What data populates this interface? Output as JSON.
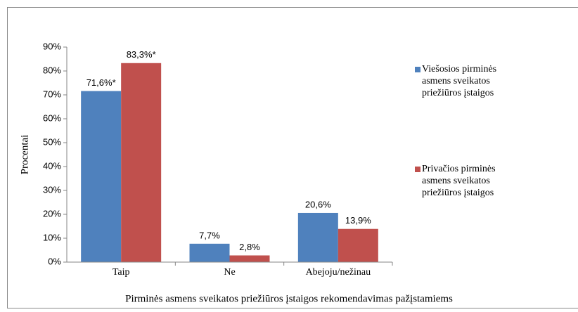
{
  "chart_data": {
    "type": "bar",
    "x_label": "Pirminės asmens sveikatos priežiūros įstaigos rekomendavimas pažįstamiems",
    "y_label": "Procentai",
    "categories": [
      "Taip",
      "Ne",
      "Abejoju/nežinau"
    ],
    "series": [
      {
        "name": "Viešosios pirminės asmens sveikatos priežiūros įstaigos",
        "color": "#4f81bd",
        "values": [
          71.6,
          7.7,
          20.6
        ],
        "value_labels": [
          "71,6%*",
          "7,7%",
          "20,6%"
        ]
      },
      {
        "name": "Privačios pirminės asmens sveikatos priežiūros įstaigos",
        "color": "#c0504d",
        "values": [
          83.3,
          2.8,
          13.9
        ],
        "value_labels": [
          "83,3%*",
          "2,8%",
          "13,9%"
        ]
      }
    ],
    "ylim": [
      0,
      90
    ],
    "yticks": [
      {
        "value": 0,
        "label": "0%"
      },
      {
        "value": 10,
        "label": "10%"
      },
      {
        "value": 20,
        "label": "20%"
      },
      {
        "value": 30,
        "label": "30%"
      },
      {
        "value": 40,
        "label": "40%"
      },
      {
        "value": 50,
        "label": "50%"
      },
      {
        "value": 60,
        "label": "60%"
      },
      {
        "value": 70,
        "label": "70%"
      },
      {
        "value": 80,
        "label": "80%"
      },
      {
        "value": 90,
        "label": "90%"
      }
    ],
    "grid": false,
    "legend": "right"
  }
}
